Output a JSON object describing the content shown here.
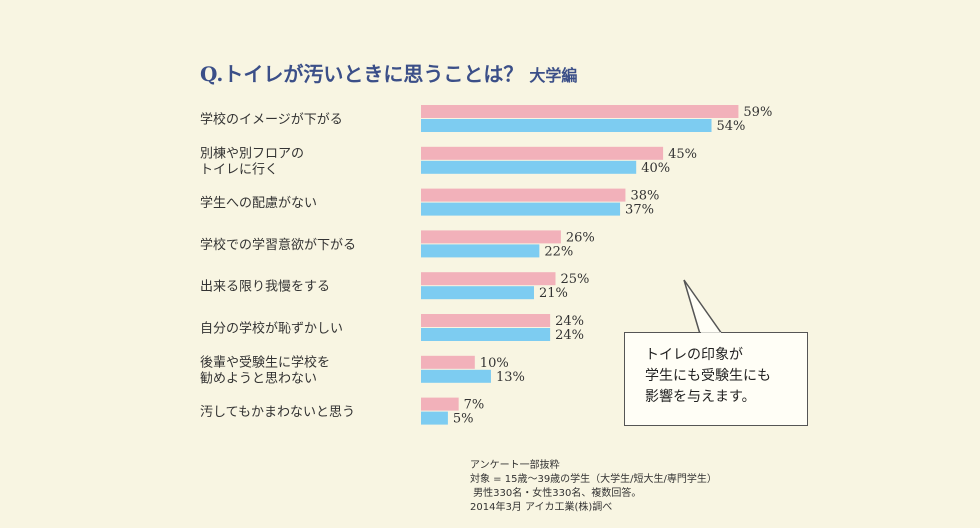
{
  "title": {
    "main": "Q.トイレが汚いときに思うことは？",
    "sub": "大学編"
  },
  "colors": {
    "pink": "#f2b1ba",
    "blue": "#7dccf1",
    "title": "#3b4f88"
  },
  "chart_data": {
    "type": "bar",
    "orientation": "horizontal",
    "categories": [
      [
        "学校のイメージが下がる"
      ],
      [
        "別棟や別フロアの",
        "トイレに行く"
      ],
      [
        "学生への配慮がない"
      ],
      [
        "学校での学習意欲が下がる"
      ],
      [
        "出来る限り我慢をする"
      ],
      [
        "自分の学校が恥ずかしい"
      ],
      [
        "後輩や受験生に学校を",
        "勧めようと思わない"
      ],
      [
        "汚してもかまわないと思う"
      ]
    ],
    "series": [
      {
        "color": "#f2b1ba",
        "values": [
          59,
          45,
          38,
          26,
          25,
          24,
          10,
          7
        ],
        "labels": [
          "59%",
          "45%",
          "38%",
          "26%",
          "25%",
          "24%",
          "10%",
          "7%"
        ]
      },
      {
        "color": "#7dccf1",
        "values": [
          54,
          40,
          37,
          22,
          21,
          24,
          13,
          5
        ],
        "labels": [
          "54%",
          "40%",
          "37%",
          "22%",
          "21%",
          "24%",
          "13%",
          "5%"
        ]
      }
    ],
    "unit": "%",
    "xlim": [
      0,
      100
    ],
    "grid": false,
    "legend": "none"
  },
  "callout": {
    "lines": [
      "トイレの印象が",
      "学生にも受験生にも",
      "影響を与えます。"
    ]
  },
  "notes": [
    "アンケート一部抜粋",
    "対象 = 15歳～39歳の学生（大学生/短大生/専門学生）",
    " 男性330名・女性330名、複数回答。",
    "2014年3月 アイカ工業(株)調べ"
  ]
}
